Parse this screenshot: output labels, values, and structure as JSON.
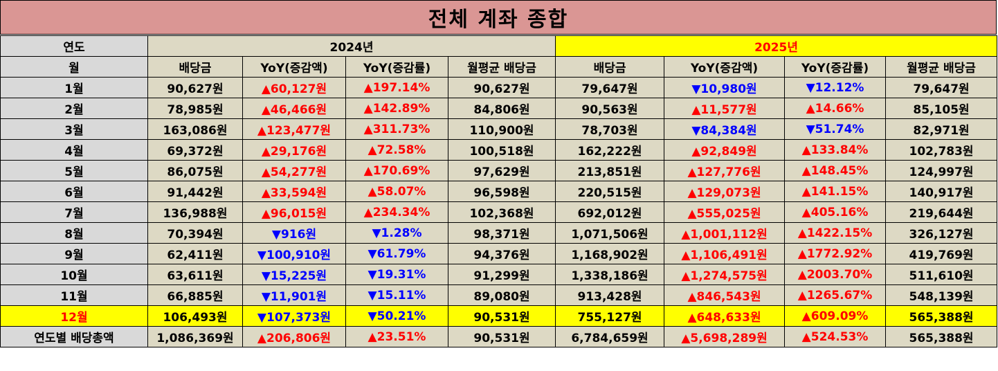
{
  "title": "전체 계좌 종합",
  "header": {
    "year_label": "연도",
    "month_label": "월",
    "year_2024": "2024년",
    "year_2025": "2025년",
    "columns": [
      "배당금",
      "YoY(증감액)",
      "YoY(증감률)",
      "월평균 배당금"
    ]
  },
  "rows": [
    {
      "month": "1월",
      "y24": {
        "div": "90,627원",
        "yoy_amt": "▲60,127원",
        "yoy_amt_dir": "up",
        "yoy_rate": "▲197.14%",
        "yoy_rate_dir": "up",
        "avg": "90,627원"
      },
      "y25": {
        "div": "79,647원",
        "yoy_amt": "▼10,980원",
        "yoy_amt_dir": "down",
        "yoy_rate": "▼12.12%",
        "yoy_rate_dir": "down",
        "avg": "79,647원"
      }
    },
    {
      "month": "2월",
      "y24": {
        "div": "78,985원",
        "yoy_amt": "▲46,466원",
        "yoy_amt_dir": "up",
        "yoy_rate": "▲142.89%",
        "yoy_rate_dir": "up",
        "avg": "84,806원"
      },
      "y25": {
        "div": "90,563원",
        "yoy_amt": "▲11,577원",
        "yoy_amt_dir": "up",
        "yoy_rate": "▲14.66%",
        "yoy_rate_dir": "up",
        "avg": "85,105원"
      }
    },
    {
      "month": "3월",
      "y24": {
        "div": "163,086원",
        "yoy_amt": "▲123,477원",
        "yoy_amt_dir": "up",
        "yoy_rate": "▲311.73%",
        "yoy_rate_dir": "up",
        "avg": "110,900원"
      },
      "y25": {
        "div": "78,703원",
        "yoy_amt": "▼84,384원",
        "yoy_amt_dir": "down",
        "yoy_rate": "▼51.74%",
        "yoy_rate_dir": "down",
        "avg": "82,971원"
      }
    },
    {
      "month": "4월",
      "y24": {
        "div": "69,372원",
        "yoy_amt": "▲29,176원",
        "yoy_amt_dir": "up",
        "yoy_rate": "▲72.58%",
        "yoy_rate_dir": "up",
        "avg": "100,518원"
      },
      "y25": {
        "div": "162,222원",
        "yoy_amt": "▲92,849원",
        "yoy_amt_dir": "up",
        "yoy_rate": "▲133.84%",
        "yoy_rate_dir": "up",
        "avg": "102,783원"
      }
    },
    {
      "month": "5월",
      "y24": {
        "div": "86,075원",
        "yoy_amt": "▲54,277원",
        "yoy_amt_dir": "up",
        "yoy_rate": "▲170.69%",
        "yoy_rate_dir": "up",
        "avg": "97,629원"
      },
      "y25": {
        "div": "213,851원",
        "yoy_amt": "▲127,776원",
        "yoy_amt_dir": "up",
        "yoy_rate": "▲148.45%",
        "yoy_rate_dir": "up",
        "avg": "124,997원"
      }
    },
    {
      "month": "6월",
      "y24": {
        "div": "91,442원",
        "yoy_amt": "▲33,594원",
        "yoy_amt_dir": "up",
        "yoy_rate": "▲58.07%",
        "yoy_rate_dir": "up",
        "avg": "96,598원"
      },
      "y25": {
        "div": "220,515원",
        "yoy_amt": "▲129,073원",
        "yoy_amt_dir": "up",
        "yoy_rate": "▲141.15%",
        "yoy_rate_dir": "up",
        "avg": "140,917원"
      }
    },
    {
      "month": "7월",
      "y24": {
        "div": "136,988원",
        "yoy_amt": "▲96,015원",
        "yoy_amt_dir": "up",
        "yoy_rate": "▲234.34%",
        "yoy_rate_dir": "up",
        "avg": "102,368원"
      },
      "y25": {
        "div": "692,012원",
        "yoy_amt": "▲555,025원",
        "yoy_amt_dir": "up",
        "yoy_rate": "▲405.16%",
        "yoy_rate_dir": "up",
        "avg": "219,644원"
      }
    },
    {
      "month": "8월",
      "y24": {
        "div": "70,394원",
        "yoy_amt": "▼916원",
        "yoy_amt_dir": "down",
        "yoy_rate": "▼1.28%",
        "yoy_rate_dir": "down",
        "avg": "98,371원"
      },
      "y25": {
        "div": "1,071,506원",
        "yoy_amt": "▲1,001,112원",
        "yoy_amt_dir": "up",
        "yoy_rate": "▲1422.15%",
        "yoy_rate_dir": "up",
        "avg": "326,127원"
      }
    },
    {
      "month": "9월",
      "y24": {
        "div": "62,411원",
        "yoy_amt": "▼100,910원",
        "yoy_amt_dir": "down",
        "yoy_rate": "▼61.79%",
        "yoy_rate_dir": "down",
        "avg": "94,376원"
      },
      "y25": {
        "div": "1,168,902원",
        "yoy_amt": "▲1,106,491원",
        "yoy_amt_dir": "up",
        "yoy_rate": "▲1772.92%",
        "yoy_rate_dir": "up",
        "avg": "419,769원"
      }
    },
    {
      "month": "10월",
      "y24": {
        "div": "63,611원",
        "yoy_amt": "▼15,225원",
        "yoy_amt_dir": "down",
        "yoy_rate": "▼19.31%",
        "yoy_rate_dir": "down",
        "avg": "91,299원"
      },
      "y25": {
        "div": "1,338,186원",
        "yoy_amt": "▲1,274,575원",
        "yoy_amt_dir": "up",
        "yoy_rate": "▲2003.70%",
        "yoy_rate_dir": "up",
        "avg": "511,610원"
      }
    },
    {
      "month": "11월",
      "y24": {
        "div": "66,885원",
        "yoy_amt": "▼11,901원",
        "yoy_amt_dir": "down",
        "yoy_rate": "▼15.11%",
        "yoy_rate_dir": "down",
        "avg": "89,080원"
      },
      "y25": {
        "div": "913,428원",
        "yoy_amt": "▲846,543원",
        "yoy_amt_dir": "up",
        "yoy_rate": "▲1265.67%",
        "yoy_rate_dir": "up",
        "avg": "548,139원"
      }
    },
    {
      "month": "12월",
      "highlight": true,
      "y24": {
        "div": "106,493원",
        "yoy_amt": "▼107,373원",
        "yoy_amt_dir": "down",
        "yoy_rate": "▼50.21%",
        "yoy_rate_dir": "down",
        "avg": "90,531원"
      },
      "y25": {
        "div": "755,127원",
        "yoy_amt": "▲648,633원",
        "yoy_amt_dir": "up",
        "yoy_rate": "▲609.09%",
        "yoy_rate_dir": "up",
        "avg": "565,388원"
      }
    }
  ],
  "total": {
    "label": "연도별 배당총액",
    "y24": {
      "div": "1,086,369원",
      "yoy_amt": "▲206,806원",
      "yoy_amt_dir": "up",
      "yoy_rate": "▲23.51%",
      "yoy_rate_dir": "up",
      "avg": "90,531원"
    },
    "y25": {
      "div": "6,784,659원",
      "yoy_amt": "▲5,698,289원",
      "yoy_amt_dir": "up",
      "yoy_rate": "▲524.53%",
      "yoy_rate_dir": "up",
      "avg": "565,388원"
    }
  },
  "colors": {
    "title_bg": "#da9694",
    "cell_bg": "#ddd9c4",
    "label_bg": "#d9d9d9",
    "highlight": "#ffff00",
    "up": "#ff0000",
    "down": "#0000ff"
  }
}
